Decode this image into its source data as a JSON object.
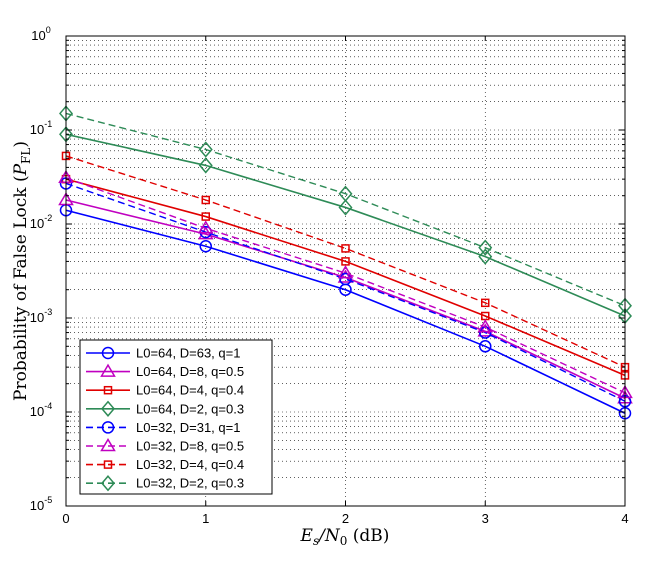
{
  "chart_data": {
    "type": "line",
    "xlabel": "E_s/N_0 (dB)",
    "xlabel_parts": {
      "sym": "E",
      "sym_sub": "s",
      "slash": "/N",
      "sub0": "0",
      "unit": " (dB)"
    },
    "ylabel": "Probability of False Lock (P_FL)",
    "ylabel_parts": {
      "prefix": "Probability of False Lock (",
      "sym": "P",
      "sub": "FL",
      "suffix": ")"
    },
    "x": [
      0,
      1,
      2,
      3,
      4
    ],
    "xlim": [
      0,
      4
    ],
    "ylim": [
      1e-05,
      1
    ],
    "yscale": "log",
    "grid": true,
    "legend_position": "bottom-left",
    "x_ticks": [
      "0",
      "1",
      "2",
      "3",
      "4"
    ],
    "y_ticks": [
      {
        "base": "10",
        "exp": "0"
      },
      {
        "base": "10",
        "exp": "-1"
      },
      {
        "base": "10",
        "exp": "-2"
      },
      {
        "base": "10",
        "exp": "-3"
      },
      {
        "base": "10",
        "exp": "-4"
      },
      {
        "base": "10",
        "exp": "-5"
      }
    ],
    "series": [
      {
        "name": "L0=64, D=63, q=1",
        "color": "#0000ff",
        "dash": "solid",
        "marker": "circle",
        "values": [
          0.014,
          0.0058,
          0.002,
          0.0005,
          9.7e-05
        ]
      },
      {
        "name": "L0=64, D=8, q=0.5",
        "color": "#c000c0",
        "dash": "solid",
        "marker": "triangle",
        "values": [
          0.018,
          0.0078,
          0.0027,
          0.00072,
          0.00014
        ]
      },
      {
        "name": "L0=64, D=4, q=0.4",
        "color": "#e00000",
        "dash": "solid",
        "marker": "square",
        "values": [
          0.03,
          0.012,
          0.004,
          0.00105,
          0.000245
        ]
      },
      {
        "name": "L0=64, D=2, q=0.3",
        "color": "#2e8b57",
        "dash": "solid",
        "marker": "diamond",
        "values": [
          0.09,
          0.042,
          0.015,
          0.0045,
          0.00105
        ]
      },
      {
        "name": "L0=32, D=31, q=1",
        "color": "#0000ff",
        "dash": "dashed",
        "marker": "circle",
        "values": [
          0.027,
          0.0082,
          0.0026,
          0.0007,
          0.00013
        ]
      },
      {
        "name": "L0=32, D=8, q=0.5",
        "color": "#c000c0",
        "dash": "dashed",
        "marker": "triangle",
        "values": [
          0.031,
          0.009,
          0.003,
          0.0008,
          0.00016
        ]
      },
      {
        "name": "L0=32, D=4, q=0.4",
        "color": "#e00000",
        "dash": "dashed",
        "marker": "square",
        "values": [
          0.053,
          0.018,
          0.0055,
          0.00145,
          0.0003
        ]
      },
      {
        "name": "L0=32, D=2, q=0.3",
        "color": "#2e8b57",
        "dash": "dashed",
        "marker": "diamond",
        "values": [
          0.15,
          0.062,
          0.021,
          0.0056,
          0.00135
        ]
      }
    ]
  }
}
